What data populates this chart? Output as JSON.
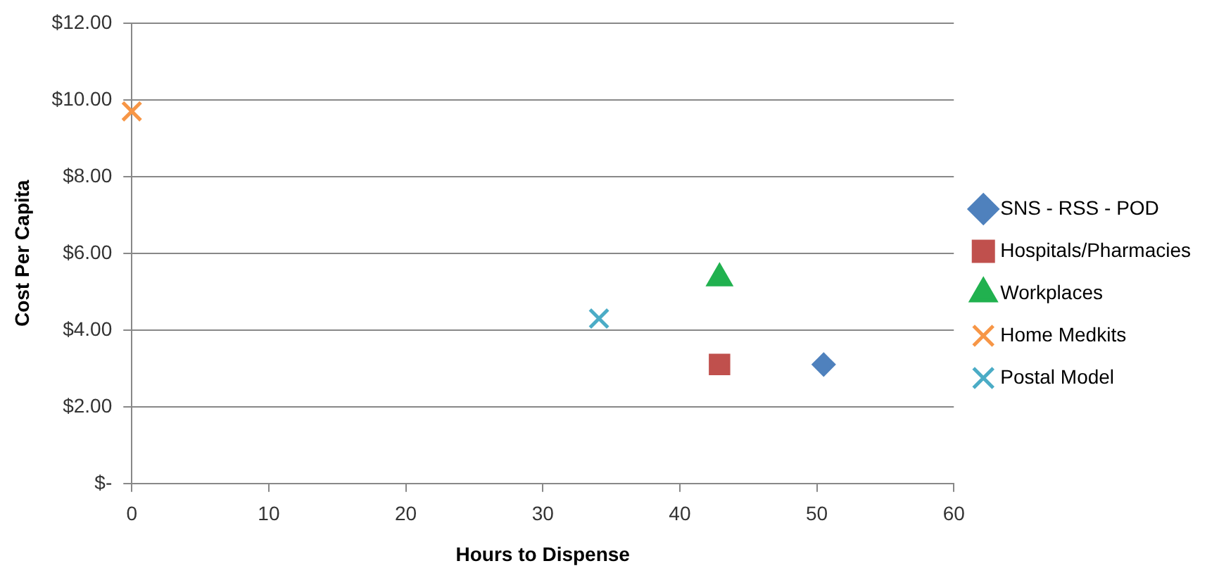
{
  "chart_data": {
    "type": "scatter",
    "xlabel": "Hours to Dispense",
    "ylabel": "Cost Per Capita",
    "xlim": [
      0,
      60
    ],
    "xticks": [
      0,
      10,
      20,
      30,
      40,
      50,
      60
    ],
    "ylim": [
      0,
      12
    ],
    "yticks": [
      {
        "value": 0,
        "label": "$-"
      },
      {
        "value": 2,
        "label": "$2.00"
      },
      {
        "value": 4,
        "label": "$4.00"
      },
      {
        "value": 6,
        "label": "$6.00"
      },
      {
        "value": 8,
        "label": "$8.00"
      },
      {
        "value": 10,
        "label": "$10.00"
      },
      {
        "value": 12,
        "label": "$12.00"
      }
    ],
    "grid": "y",
    "legend": "right",
    "series": [
      {
        "name": "SNS - RSS - POD",
        "color": "#4f81bd",
        "marker": "diamond",
        "x": [
          50.5
        ],
        "values": [
          3.1
        ]
      },
      {
        "name": "Hospitals/Pharmacies",
        "color": "#c0504d",
        "marker": "square",
        "x": [
          42.9
        ],
        "values": [
          3.1
        ]
      },
      {
        "name": "Workplaces",
        "color": "#21b14f",
        "marker": "triangle",
        "x": [
          42.9
        ],
        "values": [
          5.35
        ]
      },
      {
        "name": "Home Medkits",
        "color": "#f79646",
        "marker": "cross",
        "x": [
          0
        ],
        "values": [
          9.7
        ]
      },
      {
        "name": "Postal Model",
        "color": "#4bacc6",
        "marker": "cross",
        "x": [
          34.1
        ],
        "values": [
          4.3
        ]
      }
    ]
  }
}
